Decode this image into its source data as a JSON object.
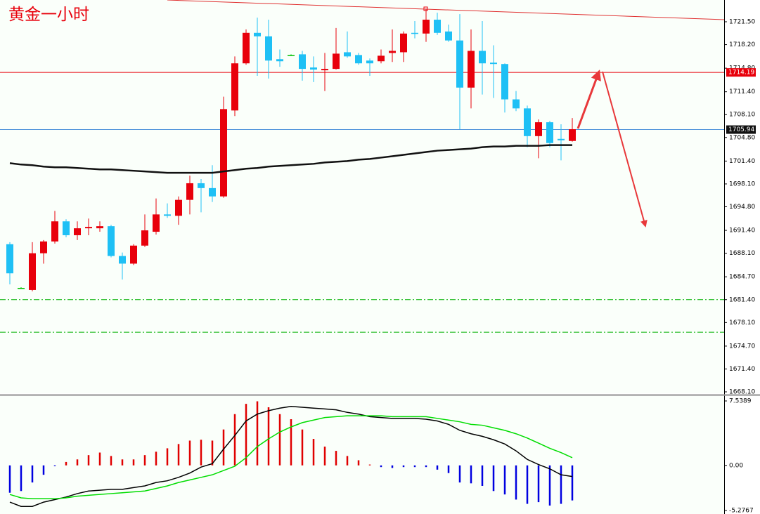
{
  "chart_data": [
    {
      "type": "candlestick",
      "title": "黄金一小时",
      "up_color": "#e8000b",
      "down_color": "#1ec0f5",
      "doji_color": "#00c000",
      "open": [
        1689.4,
        1683.1,
        1682.8,
        1688.1,
        1689.8,
        1692.7,
        1690.7,
        1691.7,
        1691.7,
        1692.0,
        1687.7,
        1686.6,
        1689.2,
        1691.2,
        1693.7,
        1693.5,
        1695.8,
        1698.2,
        1697.5,
        1696.3,
        1708.7,
        1715.5,
        1719.9,
        1719.4,
        1716.1,
        1716.7,
        1716.8,
        1714.9,
        1714.5,
        1714.7,
        1717.1,
        1716.7,
        1715.9,
        1715.8,
        1717.0,
        1717.1,
        1719.9,
        1719.8,
        1721.8,
        1720.1,
        1718.8,
        1712.0,
        1717.3,
        1715.6,
        1715.4,
        1710.3,
        1709.0,
        1705.0,
        1707.0,
        1704.6,
        1704.3
      ],
      "high": [
        1689.7,
        1683.2,
        1689.7,
        1690.0,
        1694.2,
        1693.0,
        1692.7,
        1693.1,
        1692.7,
        1692.2,
        1688.2,
        1689.4,
        1693.7,
        1696.0,
        1695.3,
        1696.3,
        1699.3,
        1698.8,
        1700.8,
        1710.7,
        1716.5,
        1720.4,
        1722.1,
        1721.8,
        1717.5,
        1716.8,
        1717.3,
        1716.5,
        1717.0,
        1720.6,
        1720.1,
        1717.0,
        1716.2,
        1717.5,
        1720.4,
        1720.1,
        1721.6,
        1723.4,
        1722.8,
        1721.1,
        1722.6,
        1720.4,
        1721.6,
        1718.1,
        1715.5,
        1711.5,
        1709.4,
        1707.4,
        1707.2,
        1706.7,
        1707.6
      ],
      "low": [
        1683.6,
        1683.0,
        1682.6,
        1686.6,
        1689.5,
        1690.4,
        1690.0,
        1690.7,
        1691.2,
        1687.5,
        1684.3,
        1686.4,
        1689.0,
        1690.8,
        1693.2,
        1692.2,
        1693.7,
        1694.0,
        1695.5,
        1696.1,
        1707.9,
        1715.3,
        1713.7,
        1713.3,
        1715.0,
        1716.6,
        1713.0,
        1712.8,
        1711.5,
        1714.6,
        1716.3,
        1715.3,
        1713.7,
        1715.5,
        1715.7,
        1715.7,
        1719.1,
        1718.6,
        1719.6,
        1718.6,
        1706.0,
        1709.0,
        1711.0,
        1710.5,
        1708.4,
        1708.6,
        1703.4,
        1701.8,
        1703.4,
        1701.5,
        1704.2
      ],
      "close": [
        1685.2,
        1683.1,
        1688.1,
        1689.8,
        1692.7,
        1690.7,
        1691.7,
        1691.9,
        1692.0,
        1687.7,
        1686.6,
        1689.2,
        1691.4,
        1693.7,
        1693.5,
        1695.8,
        1698.2,
        1697.5,
        1696.3,
        1708.9,
        1715.5,
        1719.9,
        1719.4,
        1715.9,
        1715.8,
        1716.7,
        1714.7,
        1714.6,
        1714.7,
        1716.9,
        1716.5,
        1715.5,
        1715.5,
        1716.6,
        1717.3,
        1719.8,
        1719.8,
        1721.8,
        1719.9,
        1718.8,
        1712.0,
        1717.3,
        1715.5,
        1715.4,
        1710.3,
        1709.0,
        1705.0,
        1707.0,
        1704.0,
        1704.4,
        1706.0
      ],
      "series": [
        {
          "color": "#111111",
          "values": [
            1701.1,
            1700.9,
            1700.8,
            1700.6,
            1700.5,
            1700.5,
            1700.4,
            1700.3,
            1700.2,
            1700.2,
            1700.1,
            1700.0,
            1699.9,
            1699.8,
            1699.7,
            1699.7,
            1699.7,
            1699.7,
            1699.7,
            1699.9,
            1700.1,
            1700.3,
            1700.4,
            1700.6,
            1700.7,
            1700.8,
            1700.9,
            1701.0,
            1701.2,
            1701.3,
            1701.4,
            1701.6,
            1701.7,
            1701.9,
            1702.1,
            1702.3,
            1702.5,
            1702.7,
            1702.9,
            1703.0,
            1703.1,
            1703.2,
            1703.4,
            1703.5,
            1703.5,
            1703.6,
            1703.6,
            1703.6,
            1703.7,
            1703.7,
            1703.7
          ]
        }
      ],
      "price_lines": [
        {
          "value": 1714.19,
          "color": "#e8000b"
        },
        {
          "value": 1705.94,
          "color": "#4a90d9"
        }
      ],
      "levels": [
        1681.4,
        1676.7
      ],
      "level_color": "#00b000",
      "ylim": [
        1667.9,
        1724.64
      ],
      "yticks": [
        {
          "value": 1721.5,
          "label": "1721.50"
        },
        {
          "value": 1718.2,
          "label": "1718.20"
        },
        {
          "value": 1714.8,
          "label": "1714.80"
        },
        {
          "value": 1711.4,
          "label": "1711.40"
        },
        {
          "value": 1708.1,
          "label": "1708.10"
        },
        {
          "value": 1704.8,
          "label": "1704.80"
        },
        {
          "value": 1701.4,
          "label": "1701.40"
        },
        {
          "value": 1698.1,
          "label": "1698.10"
        },
        {
          "value": 1694.8,
          "label": "1694.80"
        },
        {
          "value": 1691.4,
          "label": "1691.40"
        },
        {
          "value": 1688.1,
          "label": "1688.10"
        },
        {
          "value": 1684.7,
          "label": "1684.70"
        },
        {
          "value": 1681.4,
          "label": "1681.40"
        },
        {
          "value": 1678.1,
          "label": "1678.10"
        },
        {
          "value": 1674.7,
          "label": "1674.70"
        },
        {
          "value": 1671.4,
          "label": "1671.40"
        },
        {
          "value": 1668.1,
          "label": "1668.10"
        }
      ]
    },
    {
      "type": "macd",
      "up_color": "#e00000",
      "down_color": "#0000e0",
      "values": [
        -3.2,
        -3.0,
        -2.0,
        -1.1,
        -0.1,
        0.4,
        0.7,
        1.2,
        1.5,
        1.1,
        0.7,
        0.7,
        1.2,
        1.6,
        2.0,
        2.5,
        2.9,
        3.0,
        2.9,
        4.2,
        6.0,
        7.2,
        7.5,
        6.8,
        6.0,
        5.4,
        4.2,
        3.1,
        2.2,
        1.7,
        1.1,
        0.6,
        0.1,
        -0.2,
        -0.3,
        -0.2,
        -0.2,
        -0.2,
        -0.5,
        -0.9,
        -2.0,
        -2.1,
        -2.4,
        -3.0,
        -3.4,
        -4.0,
        -4.5,
        -4.3,
        -4.7,
        -4.5,
        -4.1
      ],
      "series": [
        {
          "color": "#000000",
          "values": [
            -4.3,
            -4.8,
            -4.8,
            -4.3,
            -4.0,
            -3.7,
            -3.3,
            -3.0,
            -2.9,
            -2.8,
            -2.8,
            -2.6,
            -2.4,
            -2.0,
            -1.8,
            -1.4,
            -0.9,
            -0.2,
            0.2,
            1.9,
            3.5,
            5.2,
            6.0,
            6.4,
            6.7,
            6.9,
            6.8,
            6.7,
            6.6,
            6.5,
            6.2,
            6.0,
            5.7,
            5.6,
            5.5,
            5.5,
            5.5,
            5.4,
            5.2,
            4.8,
            4.1,
            3.7,
            3.4,
            3.0,
            2.5,
            1.7,
            0.7,
            0.1,
            -0.4,
            -1.1,
            -1.3
          ]
        },
        {
          "color": "#00dd00",
          "values": [
            -3.4,
            -3.8,
            -3.9,
            -3.9,
            -3.9,
            -3.8,
            -3.6,
            -3.5,
            -3.4,
            -3.3,
            -3.2,
            -3.1,
            -3.0,
            -2.7,
            -2.4,
            -2.0,
            -1.7,
            -1.4,
            -1.1,
            -0.6,
            -0.1,
            0.9,
            2.2,
            3.1,
            3.9,
            4.5,
            5.0,
            5.3,
            5.6,
            5.7,
            5.8,
            5.8,
            5.8,
            5.8,
            5.7,
            5.7,
            5.7,
            5.7,
            5.5,
            5.3,
            5.1,
            4.8,
            4.7,
            4.4,
            4.1,
            3.7,
            3.2,
            2.6,
            2.0,
            1.5,
            0.9
          ]
        }
      ],
      "ylim": [
        -5.2767,
        7.5389
      ],
      "yticks": [
        7.5389,
        {
          "value": 0,
          "label": "0.00"
        },
        -5.2767
      ]
    }
  ]
}
